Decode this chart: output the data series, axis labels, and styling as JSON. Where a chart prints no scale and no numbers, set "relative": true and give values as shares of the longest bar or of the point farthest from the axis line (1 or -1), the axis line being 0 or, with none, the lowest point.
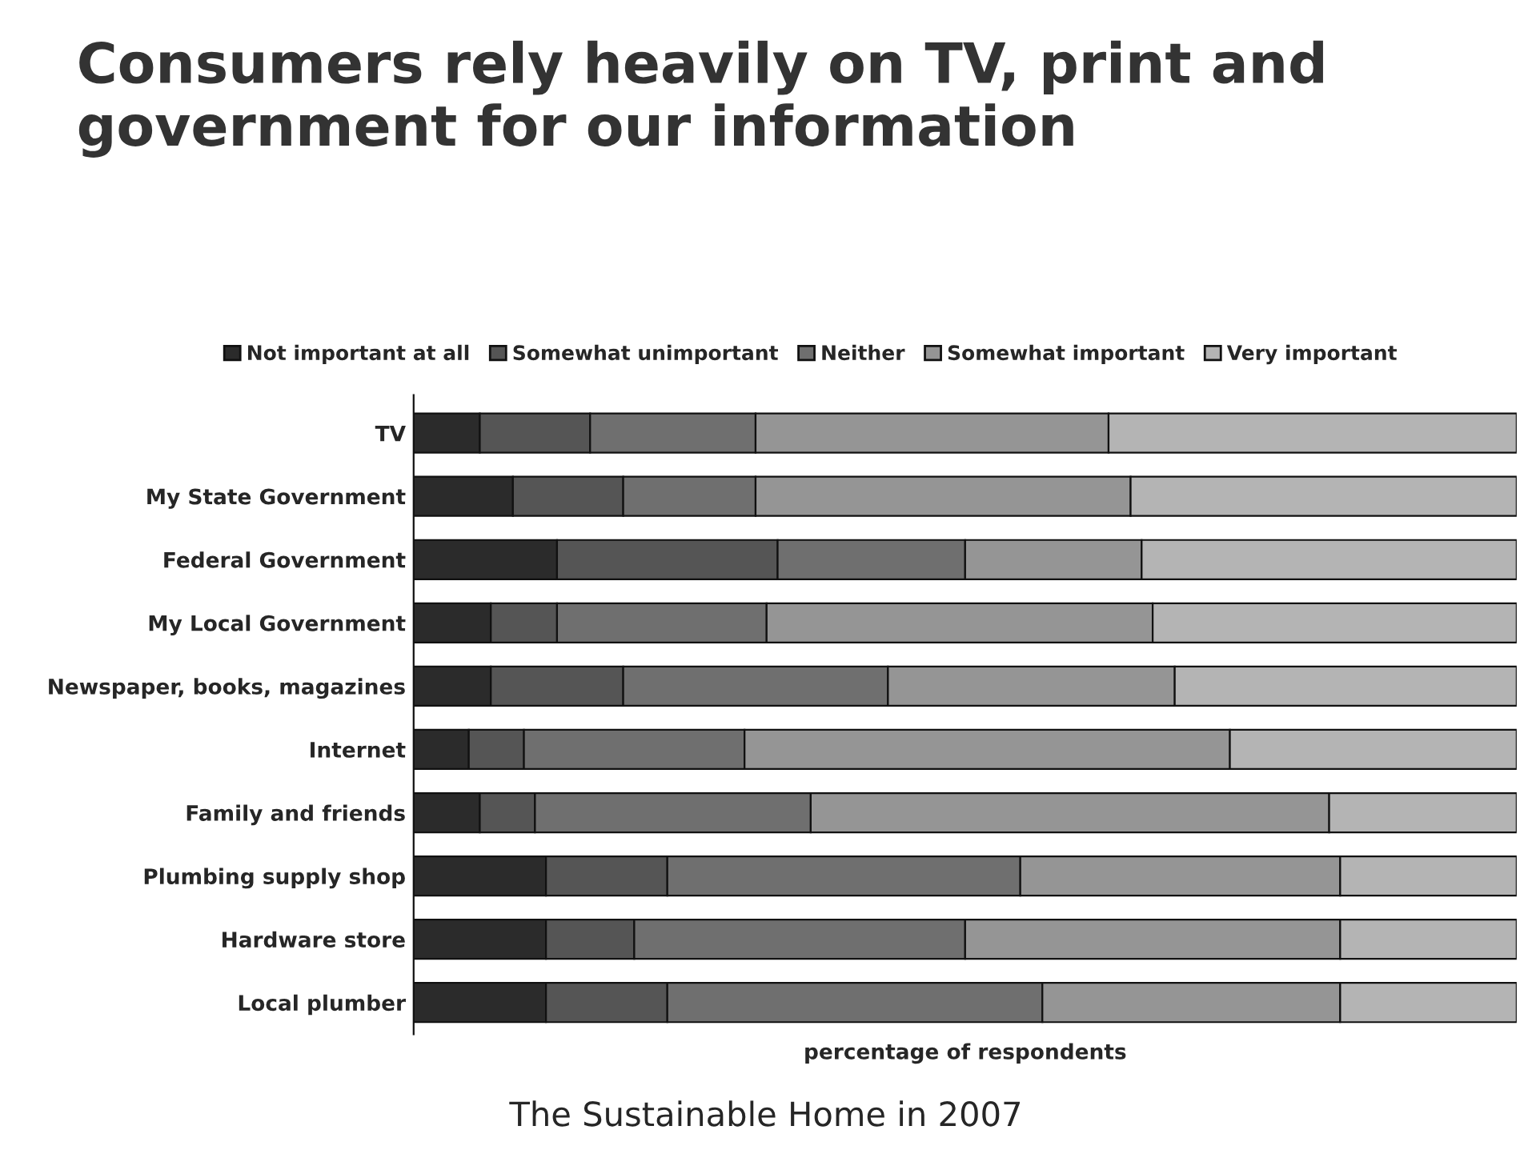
{
  "chart_data": {
    "type": "bar",
    "orientation": "horizontal",
    "stacked": true,
    "relative": true,
    "title": "Consumers rely heavily on TV, print and government for our information",
    "xlabel": "percentage of respondents",
    "annotations": [
      "The Sustainable Home in 2007"
    ],
    "legend": "top",
    "categories": [
      "TV",
      "My State Government",
      "Federal Government",
      "My Local Government",
      "Newspaper, books, magazines",
      "Internet",
      "Family and friends",
      "Plumbing supply shop",
      "Hardware store",
      "Local plumber"
    ],
    "series": [
      {
        "name": "Not important at all",
        "color": "#2b2b2b",
        "values": [
          0.06,
          0.09,
          0.13,
          0.07,
          0.07,
          0.05,
          0.06,
          0.12,
          0.12,
          0.12
        ]
      },
      {
        "name": "Somewhat unimportant",
        "color": "#555555",
        "values": [
          0.1,
          0.1,
          0.2,
          0.06,
          0.12,
          0.05,
          0.05,
          0.11,
          0.08,
          0.11
        ]
      },
      {
        "name": "Neither",
        "color": "#6f6f6f",
        "values": [
          0.15,
          0.12,
          0.17,
          0.19,
          0.24,
          0.2,
          0.25,
          0.32,
          0.3,
          0.34
        ]
      },
      {
        "name": "Somewhat important",
        "color": "#959595",
        "values": [
          0.32,
          0.34,
          0.16,
          0.35,
          0.26,
          0.44,
          0.47,
          0.29,
          0.34,
          0.27
        ]
      },
      {
        "name": "Very important",
        "color": "#b4b4b4",
        "values": [
          0.37,
          0.35,
          0.34,
          0.33,
          0.31,
          0.26,
          0.17,
          0.16,
          0.16,
          0.16
        ]
      }
    ]
  }
}
